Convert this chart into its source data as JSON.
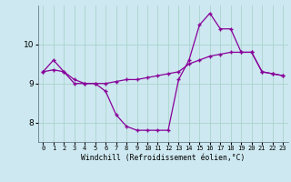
{
  "xlabel": "Windchill (Refroidissement éolien,°C)",
  "background_color": "#cde8f0",
  "grid_color": "#aad4cc",
  "line_color": "#880099",
  "x_hours": [
    0,
    1,
    2,
    3,
    4,
    5,
    6,
    7,
    8,
    9,
    10,
    11,
    12,
    13,
    14,
    15,
    16,
    17,
    18,
    19,
    20,
    21,
    22,
    23
  ],
  "series1": [
    9.3,
    9.6,
    9.3,
    9.0,
    9.0,
    9.0,
    8.8,
    8.2,
    7.9,
    7.8,
    7.8,
    7.8,
    7.8,
    9.1,
    9.6,
    10.5,
    10.8,
    10.4,
    10.4,
    9.8,
    9.8,
    9.3,
    9.25,
    9.2
  ],
  "series2": [
    9.3,
    9.35,
    9.3,
    9.1,
    9.0,
    9.0,
    9.0,
    9.05,
    9.1,
    9.1,
    9.15,
    9.2,
    9.25,
    9.3,
    9.5,
    9.6,
    9.7,
    9.75,
    9.8,
    9.8,
    9.8,
    9.3,
    9.25,
    9.2
  ],
  "ylim": [
    7.5,
    11.0
  ],
  "yticks": [
    8,
    9,
    10
  ],
  "xlim": [
    -0.5,
    23.5
  ]
}
